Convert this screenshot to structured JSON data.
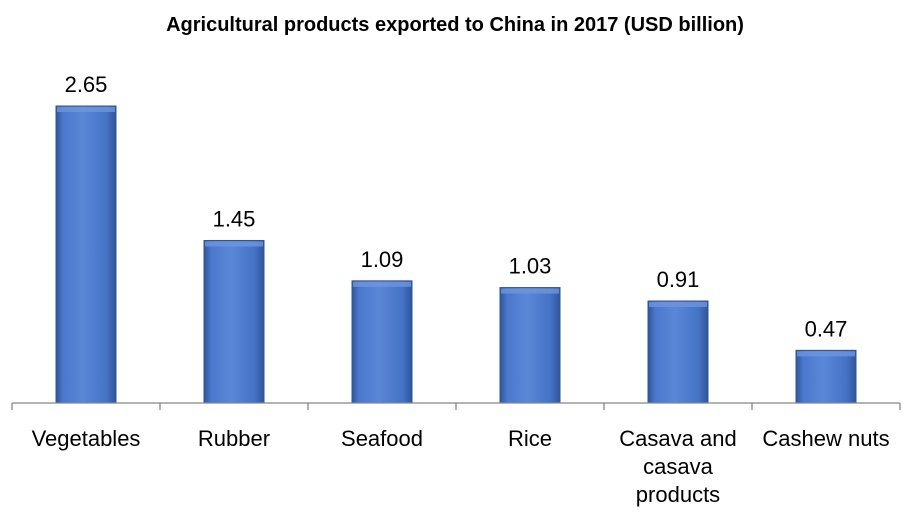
{
  "chart_data": {
    "type": "bar",
    "title": "Agricultural products exported to China in 2017 (USD billion)",
    "categories": [
      "Vegetables",
      "Rubber",
      "Seafood",
      "Rice",
      "Casava and casava products",
      "Cashew nuts"
    ],
    "category_lines": [
      [
        "Vegetables"
      ],
      [
        "Rubber"
      ],
      [
        "Seafood"
      ],
      [
        "Rice"
      ],
      [
        "Casava and",
        "casava",
        "products"
      ],
      [
        "Cashew nuts"
      ]
    ],
    "values": [
      2.65,
      1.45,
      1.09,
      1.03,
      0.91,
      0.47
    ],
    "value_labels": [
      "2.65",
      "1.45",
      "1.09",
      "1.03",
      "0.91",
      "0.47"
    ],
    "xlabel": "",
    "ylabel": "",
    "ylim": [
      0,
      2.65
    ],
    "grid": false,
    "legend": "none",
    "colors": {
      "bar": "#4472C4",
      "bar_light": "#6E96DE",
      "bar_dark": "#2F559C",
      "axis": "#868686"
    }
  }
}
